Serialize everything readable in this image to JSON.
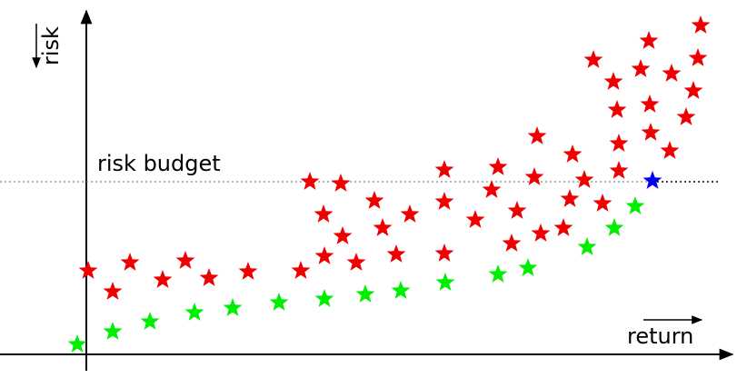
{
  "labels": {
    "risk": "risk",
    "return": "return",
    "risk_budget": "risk budget"
  },
  "colors": {
    "inefficient": "#ee0000",
    "efficient": "#00ee00",
    "optimal": "#0000ee",
    "axis": "#000000",
    "budget_line": "#888888"
  },
  "risk_budget_level": 200,
  "chart_data": {
    "type": "scatter",
    "xlabel": "return",
    "ylabel": "risk",
    "series": [
      {
        "name": "",
        "role": "inefficient",
        "points": [
          [
            97,
            298
          ],
          [
            124,
            321
          ],
          [
            143,
            289
          ],
          [
            179,
            308
          ],
          [
            204,
            287
          ],
          [
            230,
            306
          ],
          [
            273,
            299
          ],
          [
            331,
            298
          ],
          [
            341,
            200
          ],
          [
            375,
            202
          ],
          [
            356,
            236
          ],
          [
            357,
            282
          ],
          [
            377,
            260
          ],
          [
            392,
            289
          ],
          [
            412,
            221
          ],
          [
            421,
            251
          ],
          [
            436,
            280
          ],
          [
            451,
            236
          ],
          [
            489,
            187
          ],
          [
            489,
            222
          ],
          [
            489,
            279
          ],
          [
            523,
            242
          ],
          [
            541,
            209
          ],
          [
            548,
            184
          ],
          [
            563,
            268
          ],
          [
            569,
            232
          ],
          [
            588,
            195
          ],
          [
            591,
            150
          ],
          [
            595,
            257
          ],
          [
            620,
            251
          ],
          [
            627,
            219
          ],
          [
            630,
            170
          ],
          [
            643,
            198
          ],
          [
            653,
            66
          ],
          [
            663,
            224
          ],
          [
            675,
            90
          ],
          [
            679,
            121
          ],
          [
            681,
            158
          ],
          [
            681,
            188
          ],
          [
            705,
            76
          ],
          [
            714,
            45
          ],
          [
            715,
            115
          ],
          [
            716,
            146
          ],
          [
            737,
            166
          ],
          [
            739,
            81
          ],
          [
            755,
            129
          ],
          [
            763,
            100
          ],
          [
            768,
            64
          ],
          [
            771,
            28
          ]
        ]
      },
      {
        "name": "",
        "role": "efficient",
        "points": [
          [
            85,
            379
          ],
          [
            124,
            365
          ],
          [
            165,
            354
          ],
          [
            214,
            344
          ],
          [
            256,
            339
          ],
          [
            307,
            333
          ],
          [
            357,
            329
          ],
          [
            402,
            324
          ],
          [
            441,
            320
          ],
          [
            490,
            311
          ],
          [
            548,
            302
          ],
          [
            581,
            295
          ],
          [
            646,
            272
          ],
          [
            676,
            251
          ],
          [
            699,
            227
          ]
        ]
      },
      {
        "name": "",
        "role": "optimal",
        "points": [
          [
            718,
            199
          ]
        ]
      }
    ]
  }
}
